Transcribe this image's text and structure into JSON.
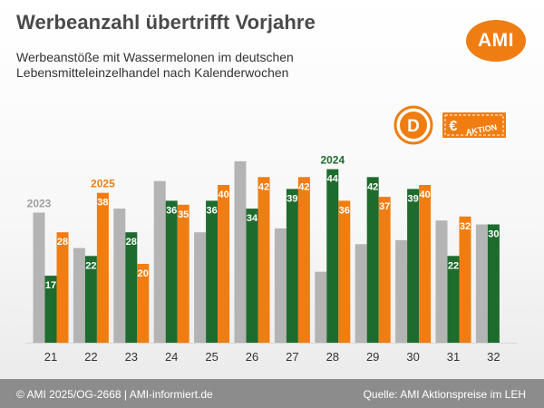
{
  "header": {
    "title": "Werbeanzahl übertrifft Vorjahre",
    "subtitle_line1": "Werbeanstöße mit Wassermelonen im deutschen",
    "subtitle_line2": "Lebensmitteleinzelhandel nach Kalenderwochen",
    "logo_text": "AMI"
  },
  "badge": {
    "letter": "D",
    "currency": "€",
    "label": "AKTION"
  },
  "colors": {
    "s2023": "#b4b4b4",
    "s2024": "#1e6b2e",
    "s2025": "#f07d12",
    "footer": "#8c8c8c"
  },
  "chart_data": {
    "type": "bar",
    "categories": [
      "21",
      "22",
      "23",
      "24",
      "25",
      "26",
      "27",
      "28",
      "29",
      "30",
      "31",
      "32"
    ],
    "series": [
      {
        "name": "2023",
        "values": [
          33,
          24,
          34,
          41,
          28,
          46,
          29,
          18,
          25,
          26,
          31,
          30
        ],
        "labels": [
          null,
          null,
          null,
          null,
          null,
          null,
          null,
          null,
          null,
          null,
          null,
          null
        ]
      },
      {
        "name": "2024",
        "values": [
          17,
          22,
          28,
          36,
          36,
          34,
          39,
          44,
          42,
          39,
          22,
          30
        ],
        "labels": [
          "17",
          "22",
          "28",
          "36",
          "36",
          "34",
          "39",
          "44",
          "42",
          "39",
          "22",
          "30"
        ]
      },
      {
        "name": "2025",
        "values": [
          28,
          38,
          20,
          35,
          40,
          42,
          42,
          36,
          37,
          40,
          32,
          null
        ],
        "labels": [
          "28",
          "38",
          "20",
          "35",
          "40",
          "42",
          "42",
          "36",
          "37",
          "40",
          "32",
          null
        ]
      }
    ],
    "series_annotations": [
      {
        "series": "2023",
        "category": "21",
        "text": "2023"
      },
      {
        "series": "2025",
        "category": "22",
        "text": "2025"
      },
      {
        "series": "2024",
        "category": "28",
        "text": "2024"
      }
    ],
    "ylim": [
      0,
      50
    ],
    "grid": false,
    "legend": "none"
  },
  "footer": {
    "left": "© AMI 2025/OG-2668 | AMI-informiert.de",
    "right": "Quelle: AMI Aktionspreise im LEH"
  }
}
